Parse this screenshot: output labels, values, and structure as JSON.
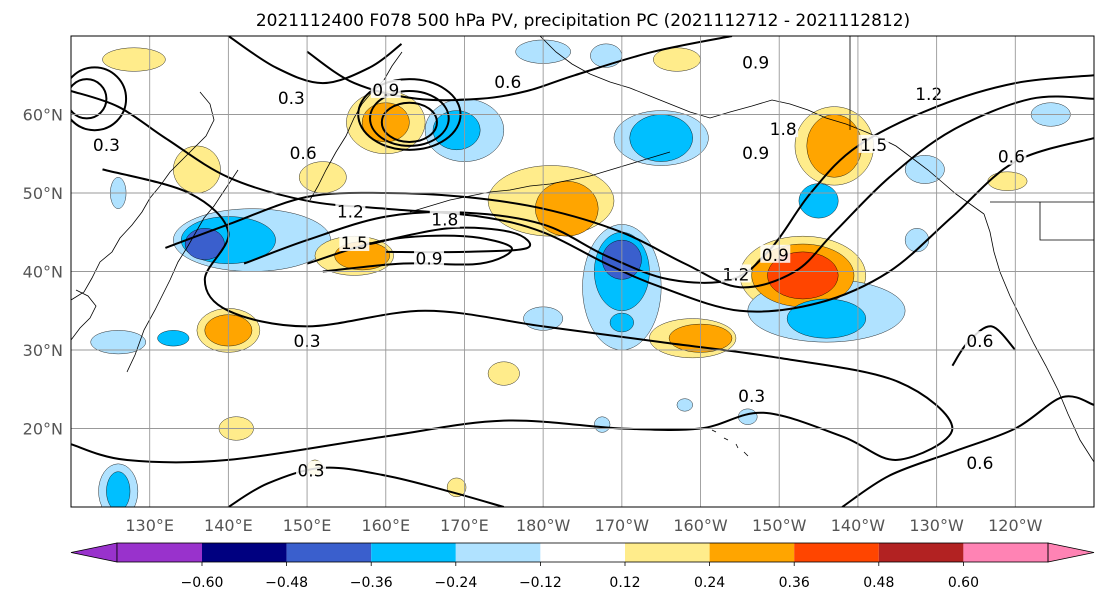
{
  "chart_data": {
    "type": "contour-map",
    "title": "2021112400 F078 500 hPa PV, precipitation PC (2021112712 - 2021112812)",
    "lon_range": [
      120,
      250
    ],
    "lat_range": [
      10,
      70
    ],
    "lat_ticks": [
      {
        "value": 20,
        "label": "20°N"
      },
      {
        "value": 30,
        "label": "30°N"
      },
      {
        "value": 40,
        "label": "40°N"
      },
      {
        "value": 50,
        "label": "50°N"
      },
      {
        "value": 60,
        "label": "60°N"
      }
    ],
    "lon_ticks": [
      {
        "value": 130,
        "label": "130°E"
      },
      {
        "value": 140,
        "label": "140°E"
      },
      {
        "value": 150,
        "label": "150°E"
      },
      {
        "value": 160,
        "label": "160°E"
      },
      {
        "value": 170,
        "label": "170°E"
      },
      {
        "value": 180,
        "label": "180°W"
      },
      {
        "value": 190,
        "label": "170°W"
      },
      {
        "value": 200,
        "label": "160°W"
      },
      {
        "value": 210,
        "label": "150°W"
      },
      {
        "value": 220,
        "label": "140°W"
      },
      {
        "value": 230,
        "label": "130°W"
      },
      {
        "value": 240,
        "label": "120°W"
      }
    ],
    "grid": true,
    "colorbar": {
      "ticks": [
        "−0.60",
        "−0.48",
        "−0.36",
        "−0.24",
        "−0.12",
        "0.12",
        "0.24",
        "0.36",
        "0.48",
        "0.60"
      ],
      "colors": [
        "#9932cc",
        "#000080",
        "#3a5fcd",
        "#00bfff",
        "#b0e2ff",
        "#ffffff",
        "#ffec8b",
        "#ffa500",
        "#ff4500",
        "#b22222",
        "#ff83b4"
      ],
      "extend": "both"
    },
    "pv_contour_labels": [
      {
        "text": "0.9",
        "lon": 207,
        "lat": 66.5
      },
      {
        "text": "0.6",
        "lon": 175.5,
        "lat": 64
      },
      {
        "text": "0.9",
        "lon": 160,
        "lat": 63
      },
      {
        "text": "0.3",
        "lon": 148,
        "lat": 62
      },
      {
        "text": "1.2",
        "lon": 229,
        "lat": 62.5
      },
      {
        "text": "1.8",
        "lon": 210.5,
        "lat": 58
      },
      {
        "text": "1.5",
        "lon": 222,
        "lat": 56
      },
      {
        "text": "0.9",
        "lon": 207,
        "lat": 55
      },
      {
        "text": "0.6",
        "lon": 239.5,
        "lat": 54.5
      },
      {
        "text": "0.3",
        "lon": 124.5,
        "lat": 56
      },
      {
        "text": "0.6",
        "lon": 149.5,
        "lat": 55
      },
      {
        "text": "1.2",
        "lon": 155.5,
        "lat": 47.5
      },
      {
        "text": "1.8",
        "lon": 167.5,
        "lat": 46.5
      },
      {
        "text": "1.5",
        "lon": 156,
        "lat": 43.5
      },
      {
        "text": "0.9",
        "lon": 165.5,
        "lat": 41.5
      },
      {
        "text": "1.2",
        "lon": 204.5,
        "lat": 39.5
      },
      {
        "text": "0.9",
        "lon": 209.5,
        "lat": 42
      },
      {
        "text": "0.3",
        "lon": 150,
        "lat": 31
      },
      {
        "text": "0.3",
        "lon": 206.5,
        "lat": 24
      },
      {
        "text": "0.6",
        "lon": 235.5,
        "lat": 31
      },
      {
        "text": "0.6",
        "lon": 235.5,
        "lat": 15.5
      },
      {
        "text": "0.3",
        "lon": 150.5,
        "lat": 14.5
      }
    ],
    "pv_contours": [
      {
        "value": 0.3,
        "pts": [
          [
            124,
            53
          ],
          [
            135,
            50
          ],
          [
            140,
            45
          ],
          [
            137,
            39
          ],
          [
            140,
            35
          ],
          [
            150,
            33
          ],
          [
            165,
            35
          ],
          [
            180,
            33
          ],
          [
            195,
            31
          ],
          [
            210,
            29
          ],
          [
            225,
            26
          ],
          [
            232,
            20
          ],
          [
            225,
            16
          ],
          [
            218,
            19
          ],
          [
            208,
            22
          ],
          [
            200,
            20
          ],
          [
            190,
            20
          ],
          [
            175,
            21
          ],
          [
            160,
            19
          ],
          [
            140,
            16
          ],
          [
            127,
            16
          ],
          [
            120,
            18
          ]
        ]
      },
      {
        "value": 0.6,
        "pts": [
          [
            120,
            63
          ],
          [
            126,
            61
          ],
          [
            132,
            57
          ],
          [
            140,
            52
          ],
          [
            150,
            49
          ],
          [
            160,
            48
          ],
          [
            172,
            47
          ],
          [
            180,
            45
          ],
          [
            188,
            41
          ],
          [
            195,
            38
          ],
          [
            205,
            35
          ],
          [
            215,
            36
          ],
          [
            224,
            40
          ],
          [
            232,
            47
          ],
          [
            240,
            54
          ],
          [
            250,
            57
          ]
        ]
      },
      {
        "value": 0.9,
        "pts": [
          [
            132,
            43
          ],
          [
            140,
            46
          ],
          [
            150,
            49.5
          ],
          [
            160,
            50
          ],
          [
            170,
            49.5
          ],
          [
            180,
            48
          ],
          [
            190,
            45
          ],
          [
            198,
            41
          ],
          [
            205,
            38
          ],
          [
            212,
            40
          ],
          [
            217,
            45
          ],
          [
            224,
            52
          ],
          [
            232,
            58
          ],
          [
            242,
            62
          ],
          [
            250,
            62
          ]
        ]
      },
      {
        "value": 1.2,
        "pts": [
          [
            142,
            41
          ],
          [
            150,
            44
          ],
          [
            160,
            47
          ],
          [
            170,
            47.5
          ],
          [
            180,
            46
          ],
          [
            188,
            42
          ],
          [
            196,
            39
          ],
          [
            204,
            39
          ],
          [
            209,
            43
          ],
          [
            214,
            50
          ],
          [
            220,
            56
          ],
          [
            230,
            61
          ],
          [
            240,
            64
          ],
          [
            250,
            65
          ]
        ]
      },
      {
        "value": 1.5,
        "pts": [
          [
            150,
            41
          ],
          [
            160,
            44
          ],
          [
            170,
            44.5
          ],
          [
            176,
            43
          ],
          [
            172,
            41
          ],
          [
            162,
            41
          ],
          [
            152,
            40
          ]
        ]
      },
      {
        "value": 1.8,
        "pts": [
          [
            158,
            43.5
          ],
          [
            168,
            45.5
          ],
          [
            176,
            45
          ],
          [
            178,
            43
          ],
          [
            170,
            42.5
          ],
          [
            160,
            42.5
          ]
        ]
      },
      {
        "value": 0.9,
        "pts": [
          [
            150,
            68
          ],
          [
            156,
            64
          ],
          [
            164,
            62
          ],
          [
            172,
            62
          ],
          [
            178,
            63
          ],
          [
            184,
            65
          ],
          [
            194,
            68
          ],
          [
            204,
            70
          ]
        ]
      },
      {
        "value": 0.6,
        "pts": [
          [
            140,
            70
          ],
          [
            146,
            66
          ],
          [
            152,
            64
          ],
          [
            158,
            66
          ],
          [
            162,
            69
          ]
        ]
      },
      {
        "value": 0.6,
        "pts": [
          [
            218,
            10
          ],
          [
            224,
            14
          ],
          [
            232,
            17
          ],
          [
            240,
            20
          ],
          [
            246,
            24
          ],
          [
            250,
            23
          ]
        ]
      },
      {
        "value": 0.3,
        "pts": [
          [
            140,
            10
          ],
          [
            145,
            13
          ],
          [
            152,
            15
          ],
          [
            160,
            14
          ],
          [
            168,
            12
          ],
          [
            175,
            10
          ]
        ]
      },
      {
        "value": 0.6,
        "pts": [
          [
            232,
            28
          ],
          [
            234,
            31
          ],
          [
            237,
            33
          ],
          [
            240,
            30
          ]
        ]
      }
    ],
    "pv_closed": [
      {
        "value": 1.5,
        "cx": 163,
        "cy": 60,
        "rx": 6.5,
        "ry": 4.5
      },
      {
        "value": 1.8,
        "cx": 163,
        "cy": 59.5,
        "rx": 5,
        "ry": 3.5
      },
      {
        "value": 2.1,
        "cx": 163,
        "cy": 59,
        "rx": 3.5,
        "ry": 2.5
      },
      {
        "value": 0.9,
        "cx": 123,
        "cy": 62,
        "rx": 4,
        "ry": 4
      },
      {
        "value": 1.2,
        "cx": 122,
        "cy": 62,
        "rx": 2.5,
        "ry": 2.5
      }
    ],
    "precip_blobs": [
      {
        "v": 0.48,
        "lon": 213,
        "lat": 39.5,
        "rx": 4.5,
        "ry": 3
      },
      {
        "v": 0.36,
        "lon": 213,
        "lat": 39.5,
        "rx": 6.5,
        "ry": 4
      },
      {
        "v": 0.24,
        "lon": 213,
        "lat": 39.5,
        "rx": 8,
        "ry": 5
      },
      {
        "v": 0.36,
        "lon": 217,
        "lat": 56,
        "rx": 3.5,
        "ry": 4
      },
      {
        "v": 0.24,
        "lon": 217,
        "lat": 56,
        "rx": 5,
        "ry": 5
      },
      {
        "v": 0.36,
        "lon": 183,
        "lat": 48,
        "rx": 4,
        "ry": 3.5
      },
      {
        "v": 0.24,
        "lon": 181,
        "lat": 49,
        "rx": 8,
        "ry": 4.5
      },
      {
        "v": 0.36,
        "lon": 160,
        "lat": 59,
        "rx": 3,
        "ry": 2.5
      },
      {
        "v": 0.24,
        "lon": 160,
        "lat": 59,
        "rx": 5,
        "ry": 4
      },
      {
        "v": 0.24,
        "lon": 152,
        "lat": 52,
        "rx": 3,
        "ry": 2
      },
      {
        "v": 0.24,
        "lon": 136,
        "lat": 53,
        "rx": 3,
        "ry": 3
      },
      {
        "v": 0.36,
        "lon": 157,
        "lat": 42,
        "rx": 3.5,
        "ry": 1.8
      },
      {
        "v": 0.24,
        "lon": 156,
        "lat": 42,
        "rx": 5,
        "ry": 2.5
      },
      {
        "v": 0.36,
        "lon": 140,
        "lat": 32.5,
        "rx": 3,
        "ry": 2
      },
      {
        "v": 0.24,
        "lon": 140,
        "lat": 32.5,
        "rx": 4,
        "ry": 2.8
      },
      {
        "v": 0.36,
        "lon": 200,
        "lat": 31.5,
        "rx": 4,
        "ry": 1.8
      },
      {
        "v": 0.24,
        "lon": 199,
        "lat": 31.5,
        "rx": 5.5,
        "ry": 2.5
      },
      {
        "v": 0.24,
        "lon": 175,
        "lat": 27,
        "rx": 2,
        "ry": 1.5
      },
      {
        "v": 0.24,
        "lon": 141,
        "lat": 20,
        "rx": 2.2,
        "ry": 1.5
      },
      {
        "v": 0.24,
        "lon": 128,
        "lat": 67,
        "rx": 4,
        "ry": 1.5
      },
      {
        "v": 0.24,
        "lon": 197,
        "lat": 67,
        "rx": 3,
        "ry": 1.5
      },
      {
        "v": 0.24,
        "lon": 239,
        "lat": 51.5,
        "rx": 2.5,
        "ry": 1.2
      },
      {
        "v": 0.24,
        "lon": 169,
        "lat": 12.5,
        "rx": 1.2,
        "ry": 1.2
      },
      {
        "v": 0.24,
        "lon": 151,
        "lat": 15,
        "rx": 1,
        "ry": 1
      },
      {
        "v": -0.48,
        "lon": 137,
        "lat": 43.5,
        "rx": 2.5,
        "ry": 2
      },
      {
        "v": -0.36,
        "lon": 140,
        "lat": 44,
        "rx": 6,
        "ry": 3
      },
      {
        "v": -0.24,
        "lon": 143,
        "lat": 44,
        "rx": 10,
        "ry": 4
      },
      {
        "v": -0.48,
        "lon": 190,
        "lat": 41.5,
        "rx": 2.5,
        "ry": 2.5
      },
      {
        "v": -0.36,
        "lon": 190,
        "lat": 40,
        "rx": 3.5,
        "ry": 5
      },
      {
        "v": -0.24,
        "lon": 190,
        "lat": 38,
        "rx": 5,
        "ry": 8
      },
      {
        "v": -0.36,
        "lon": 190,
        "lat": 33.5,
        "rx": 1.5,
        "ry": 1.2
      },
      {
        "v": -0.36,
        "lon": 169,
        "lat": 58,
        "rx": 3,
        "ry": 2.5
      },
      {
        "v": -0.24,
        "lon": 170,
        "lat": 58,
        "rx": 5,
        "ry": 4
      },
      {
        "v": -0.36,
        "lon": 195,
        "lat": 57,
        "rx": 4,
        "ry": 3
      },
      {
        "v": -0.24,
        "lon": 195,
        "lat": 57,
        "rx": 6,
        "ry": 3.5
      },
      {
        "v": -0.36,
        "lon": 216,
        "lat": 34,
        "rx": 5,
        "ry": 2.5
      },
      {
        "v": -0.24,
        "lon": 216,
        "lat": 35,
        "rx": 10,
        "ry": 4
      },
      {
        "v": -0.36,
        "lon": 215,
        "lat": 49,
        "rx": 2.5,
        "ry": 2.2
      },
      {
        "v": -0.24,
        "lon": 228.5,
        "lat": 53,
        "rx": 2.5,
        "ry": 1.8
      },
      {
        "v": -0.24,
        "lon": 227.5,
        "lat": 44,
        "rx": 1.5,
        "ry": 1.5
      },
      {
        "v": -0.24,
        "lon": 126,
        "lat": 31,
        "rx": 3.5,
        "ry": 1.5
      },
      {
        "v": -0.36,
        "lon": 133,
        "lat": 31.5,
        "rx": 2,
        "ry": 1
      },
      {
        "v": -0.24,
        "lon": 180,
        "lat": 68,
        "rx": 3.5,
        "ry": 1.5
      },
      {
        "v": -0.24,
        "lon": 188,
        "lat": 67.5,
        "rx": 2,
        "ry": 1.5
      },
      {
        "v": -0.24,
        "lon": 244.5,
        "lat": 60,
        "rx": 2.5,
        "ry": 1.5
      },
      {
        "v": -0.36,
        "lon": 126,
        "lat": 12,
        "rx": 1.5,
        "ry": 2.5
      },
      {
        "v": -0.24,
        "lon": 126,
        "lat": 12,
        "rx": 2.5,
        "ry": 3.5
      },
      {
        "v": -0.24,
        "lon": 180,
        "lat": 34,
        "rx": 2.5,
        "ry": 1.5
      },
      {
        "v": -0.24,
        "lon": 126,
        "lat": 50,
        "rx": 1,
        "ry": 2
      },
      {
        "v": -0.24,
        "lon": 187.5,
        "lat": 20.5,
        "rx": 1,
        "ry": 1
      },
      {
        "v": -0.24,
        "lon": 206,
        "lat": 21.5,
        "rx": 1.2,
        "ry": 1
      },
      {
        "v": -0.24,
        "lon": 198,
        "lat": 23,
        "rx": 1,
        "ry": 0.8
      }
    ]
  }
}
